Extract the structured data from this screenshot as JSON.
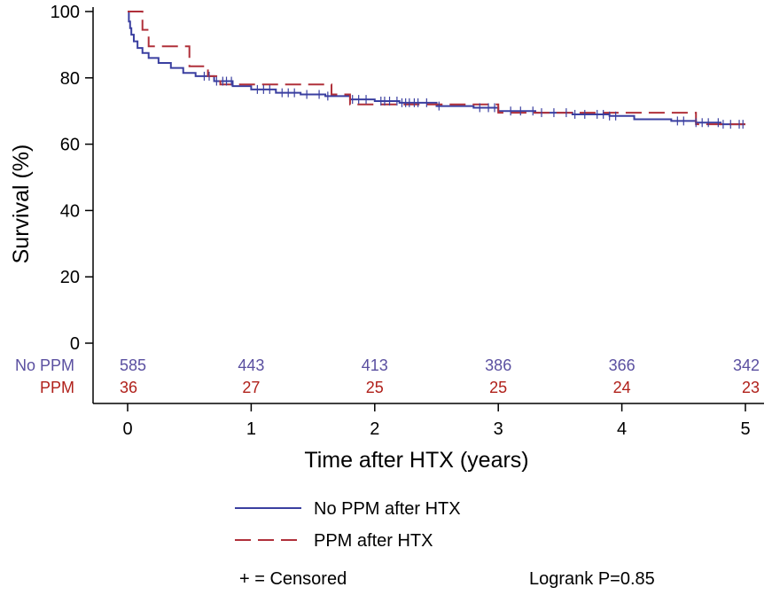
{
  "chart_data": {
    "type": "line",
    "title": "",
    "xlabel": "Time after HTX (years)",
    "ylabel": "Survival (%)",
    "xlim": [
      0,
      5
    ],
    "ylim": [
      0,
      100
    ],
    "x_ticks": [
      "0",
      "1",
      "2",
      "3",
      "4",
      "5"
    ],
    "y_ticks": [
      "0",
      "20",
      "40",
      "60",
      "80",
      "100"
    ],
    "grid": false,
    "legend_position": "bottom",
    "series": [
      {
        "name": "No PPM after HTX",
        "color": "#3a3fa0",
        "style": "solid",
        "step": true,
        "x": [
          0,
          0.01,
          0.02,
          0.03,
          0.05,
          0.08,
          0.12,
          0.17,
          0.25,
          0.35,
          0.45,
          0.55,
          0.7,
          0.85,
          1.0,
          1.2,
          1.4,
          1.6,
          1.8,
          2.0,
          2.2,
          2.5,
          2.8,
          3.0,
          3.3,
          3.6,
          3.9,
          4.1,
          4.4,
          4.6,
          4.8,
          5.0
        ],
        "values": [
          100,
          97,
          95,
          93,
          91,
          89,
          87.5,
          86,
          84.5,
          83,
          81.5,
          80.5,
          79,
          77.5,
          76.5,
          75.5,
          75,
          74.5,
          73.5,
          73,
          72.5,
          71.5,
          71,
          70,
          69.5,
          69,
          68.5,
          67.5,
          67,
          66.5,
          66,
          66
        ]
      },
      {
        "name": "PPM after HTX",
        "color": "#b0303a",
        "style": "dashed",
        "step": true,
        "x": [
          0,
          0.12,
          0.17,
          0.5,
          0.65,
          0.75,
          1.65,
          1.8,
          3.0,
          3.3,
          4.6,
          5.0
        ],
        "values": [
          100,
          94.5,
          89.5,
          83.5,
          80.5,
          78,
          75,
          72,
          69.5,
          69.5,
          66,
          66
        ]
      }
    ],
    "censor_marks": {
      "No PPM after HTX": [
        0.62,
        0.66,
        0.72,
        0.77,
        0.8,
        0.84,
        1.05,
        1.1,
        1.15,
        1.25,
        1.3,
        1.35,
        1.45,
        1.55,
        1.62,
        1.82,
        1.87,
        1.93,
        2.05,
        2.08,
        2.12,
        2.18,
        2.22,
        2.25,
        2.28,
        2.32,
        2.35,
        2.42,
        2.52,
        2.85,
        2.92,
        2.97,
        3.1,
        3.18,
        3.28,
        3.35,
        3.45,
        3.55,
        3.62,
        3.7,
        3.8,
        3.85,
        3.9,
        3.95,
        4.45,
        4.5,
        4.6,
        4.65,
        4.7,
        4.78,
        4.82,
        4.88,
        4.95,
        4.98
      ]
    },
    "risk_table": {
      "groups": [
        {
          "label": "No PPM",
          "color": "#5a4fa0",
          "values": [
            "585",
            "443",
            "413",
            "386",
            "366",
            "342"
          ]
        },
        {
          "label": "PPM",
          "color": "#b0201a",
          "values": [
            "36",
            "27",
            "25",
            "25",
            "24",
            "23"
          ]
        }
      ]
    }
  },
  "legend": {
    "items": [
      {
        "label": "No PPM after HTX",
        "color": "#3a3fa0",
        "style": "solid"
      },
      {
        "label": "PPM after HTX",
        "color": "#b0303a",
        "style": "dashed"
      }
    ],
    "censored_note": "+ = Censored",
    "pvalue": "Logrank P=0.85"
  }
}
